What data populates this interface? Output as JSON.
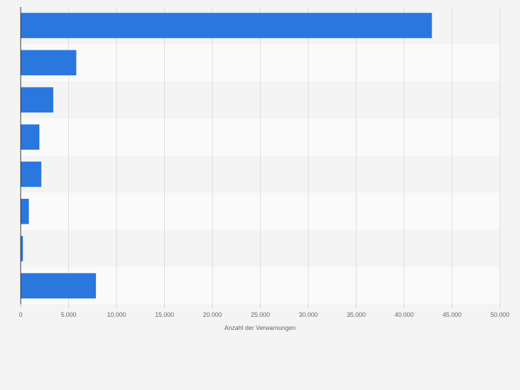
{
  "chart_data": {
    "type": "bar",
    "orientation": "horizontal",
    "xlabel": "Anzahl der Verwarnungen",
    "xlim": [
      0,
      50000
    ],
    "xticks": [
      0,
      5000,
      10000,
      15000,
      20000,
      25000,
      30000,
      35000,
      40000,
      45000,
      50000
    ],
    "xtick_labels": [
      "0",
      "5.000",
      "10.000",
      "15.000",
      "20.000",
      "25.000",
      "30.000",
      "35.000",
      "40.000",
      "45.000",
      "50.000"
    ],
    "values": [
      42900,
      5800,
      3400,
      1950,
      2150,
      850,
      230,
      7850
    ],
    "grid": true,
    "bar_color": "#2a77de",
    "band_colors": [
      "#f4f4f4",
      "#fafafa"
    ],
    "grid_color": "#dddddd",
    "axis_color": "#333333"
  }
}
